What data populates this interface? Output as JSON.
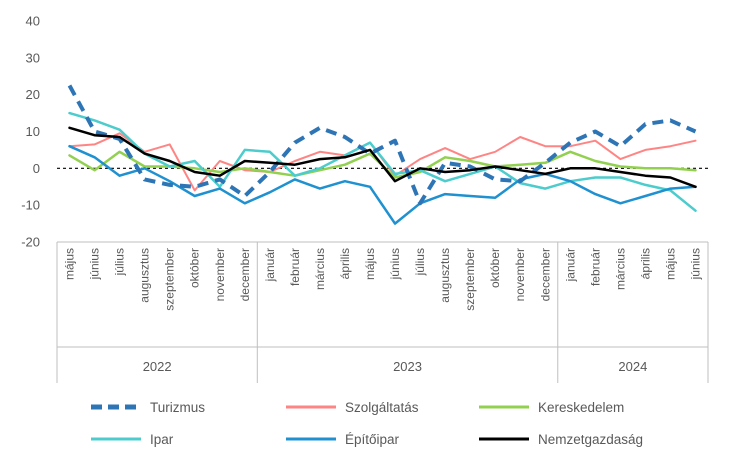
{
  "chart_data": {
    "type": "line",
    "ylim": [
      -20,
      40
    ],
    "yticks": [
      -20,
      -10,
      0,
      10,
      20,
      30,
      40
    ],
    "x": [
      "május",
      "június",
      "július",
      "augusztus",
      "szeptember",
      "október",
      "november",
      "december",
      "január",
      "február",
      "március",
      "április",
      "május",
      "június",
      "július",
      "augusztus",
      "szeptember",
      "október",
      "november",
      "december",
      "január",
      "február",
      "március",
      "április",
      "május",
      "június"
    ],
    "year_groups": [
      {
        "label": "2022",
        "start": 0,
        "end": 7
      },
      {
        "label": "2023",
        "start": 8,
        "end": 19
      },
      {
        "label": "2024",
        "start": 20,
        "end": 25
      }
    ],
    "zero_line": "dashed",
    "legend_position": "bottom",
    "series": [
      {
        "name": "Turizmus",
        "color": "#2e75b6",
        "style": "dashed",
        "width": 4,
        "values": [
          22.5,
          10,
          8,
          -3,
          -4.5,
          -5,
          -3,
          -7.5,
          -1,
          7,
          11,
          8.5,
          4,
          7.5,
          -9.5,
          1.5,
          0.5,
          -3,
          -3.5,
          1.5,
          7,
          10,
          6,
          12,
          13,
          10
        ]
      },
      {
        "name": "Szolgáltatás",
        "color": "#ff8585",
        "style": "solid",
        "width": 2,
        "values": [
          6,
          6.5,
          9.5,
          4.5,
          6.5,
          -6,
          2,
          -0.5,
          -1,
          2,
          4.5,
          3.5,
          7,
          -2,
          2.5,
          5.5,
          2.5,
          4.5,
          8.5,
          6,
          6,
          7.5,
          2.5,
          5,
          6,
          7.5
        ]
      },
      {
        "name": "Kereskedelem",
        "color": "#92d050",
        "style": "solid",
        "width": 2.5,
        "values": [
          3.5,
          -0.5,
          4.5,
          0.5,
          0.5,
          0,
          -1,
          0,
          -1,
          -2,
          -0.5,
          1,
          4,
          -2.5,
          -1,
          3,
          2,
          0.5,
          1,
          1.5,
          4.5,
          2,
          0.5,
          0,
          0,
          -0.5
        ]
      },
      {
        "name": "Ipar",
        "color": "#4ccccc",
        "style": "solid",
        "width": 2.5,
        "values": [
          15,
          13,
          10.5,
          4,
          0.5,
          2,
          -5,
          5,
          4.5,
          -2,
          0,
          3.5,
          7,
          -1.5,
          -0.5,
          -3.5,
          -1.5,
          0.5,
          -4,
          -5.5,
          -3.5,
          -2.5,
          -2.5,
          -4.5,
          -6,
          -11.5
        ]
      },
      {
        "name": "Építőipar",
        "color": "#1f91d0",
        "style": "solid",
        "width": 2.5,
        "values": [
          6,
          3,
          -2,
          0,
          -3.5,
          -7.5,
          -5.5,
          -9.5,
          -6.5,
          -3,
          -5.5,
          -3.5,
          -5,
          -15,
          -9.5,
          -7,
          -7.5,
          -8,
          -3,
          -1.5,
          -3.5,
          -7,
          -9.5,
          -7.5,
          -5.5,
          -5
        ]
      },
      {
        "name": "Nemzetgazdaság",
        "color": "#000000",
        "style": "solid",
        "width": 2.5,
        "values": [
          11,
          9,
          8.5,
          4,
          2,
          -1,
          -2,
          2,
          1.5,
          1,
          2.5,
          3,
          5,
          -3.5,
          0,
          -1,
          -0.5,
          0.5,
          -0.5,
          -1.5,
          0,
          0,
          -1,
          -2,
          -2.5,
          -5
        ]
      }
    ]
  }
}
